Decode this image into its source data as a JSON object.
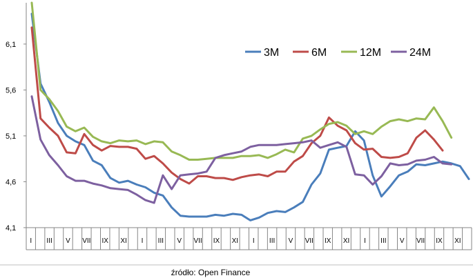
{
  "chart_data": {
    "type": "line",
    "title": "",
    "xlabel": "",
    "ylabel": "",
    "ylim": [
      4.1,
      6.55
    ],
    "y_ticks": [
      "4,1",
      "4,6",
      "5,1",
      "5,6",
      "6,1"
    ],
    "y_tick_values": [
      4.1,
      4.6,
      5.1,
      5.6,
      6.1
    ],
    "x_tick_labels": [
      "I",
      "III",
      "V",
      "VII",
      "IX",
      "XI",
      "I",
      "III",
      "V",
      "VII",
      "IX",
      "XI",
      "I",
      "III",
      "V",
      "VII",
      "IX",
      "XI",
      "I",
      "III",
      "V",
      "VII",
      "IX",
      "XI"
    ],
    "grid": {
      "horizontal": false,
      "vertical": false
    },
    "legend_position": "top-right, inside plot",
    "series": [
      {
        "name": "3M",
        "color": "#4a7ebb",
        "values": [
          6.43,
          5.67,
          5.47,
          5.24,
          5.1,
          5.04,
          5.0,
          4.83,
          4.78,
          4.64,
          4.59,
          4.61,
          4.57,
          4.54,
          4.48,
          4.45,
          4.32,
          4.23,
          4.22,
          4.22,
          4.22,
          4.24,
          4.23,
          4.25,
          4.24,
          4.18,
          4.21,
          4.26,
          4.28,
          4.27,
          4.32,
          4.38,
          4.57,
          4.69,
          4.95,
          4.97,
          4.99,
          5.15,
          5.05,
          4.67,
          4.44,
          4.55,
          4.67,
          4.71,
          4.79,
          4.78,
          4.8,
          4.82,
          4.8,
          4.77,
          4.63
        ]
      },
      {
        "name": "6M",
        "color": "#be4b48",
        "values": [
          6.28,
          5.29,
          5.19,
          5.1,
          4.92,
          4.91,
          5.12,
          5.0,
          4.94,
          4.99,
          4.98,
          4.98,
          4.96,
          4.85,
          4.88,
          4.8,
          4.7,
          4.63,
          4.58,
          4.66,
          4.66,
          4.64,
          4.64,
          4.62,
          4.65,
          4.67,
          4.68,
          4.66,
          4.71,
          4.71,
          4.82,
          4.88,
          5.02,
          5.1,
          5.3,
          5.21,
          5.16,
          5.02,
          4.95,
          4.96,
          4.87,
          4.86,
          4.87,
          4.91,
          5.08,
          5.16,
          5.06,
          4.94
        ]
      },
      {
        "name": "12M",
        "color": "#98b954",
        "values": [
          6.55,
          5.6,
          5.5,
          5.37,
          5.2,
          5.15,
          5.19,
          5.09,
          5.04,
          5.02,
          5.05,
          5.04,
          5.05,
          5.01,
          5.04,
          5.03,
          4.93,
          4.89,
          4.84,
          4.84,
          4.85,
          4.86,
          4.86,
          4.86,
          4.88,
          4.88,
          4.89,
          4.86,
          4.9,
          4.95,
          4.92,
          5.07,
          5.1,
          5.17,
          5.23,
          5.25,
          5.21,
          5.12,
          5.15,
          5.12,
          5.2,
          5.26,
          5.28,
          5.26,
          5.29,
          5.28,
          5.41,
          5.26,
          5.08
        ]
      },
      {
        "name": "24M",
        "color": "#7d60a0",
        "values": [
          5.53,
          5.06,
          4.89,
          4.78,
          4.66,
          4.61,
          4.61,
          4.58,
          4.56,
          4.53,
          4.52,
          4.51,
          4.46,
          4.4,
          4.37,
          4.67,
          4.52,
          4.67,
          4.68,
          4.69,
          4.71,
          4.86,
          4.89,
          4.91,
          4.93,
          4.98,
          5.0,
          5.0,
          5.0,
          5.01,
          5.02,
          5.03,
          5.05,
          4.97,
          5.0,
          5.03,
          4.98,
          4.68,
          4.67,
          4.57,
          4.66,
          4.8,
          4.78,
          4.79,
          4.83,
          4.84,
          4.87,
          4.8,
          4.79
        ]
      }
    ]
  },
  "source_label": "źródło: Open Finance"
}
